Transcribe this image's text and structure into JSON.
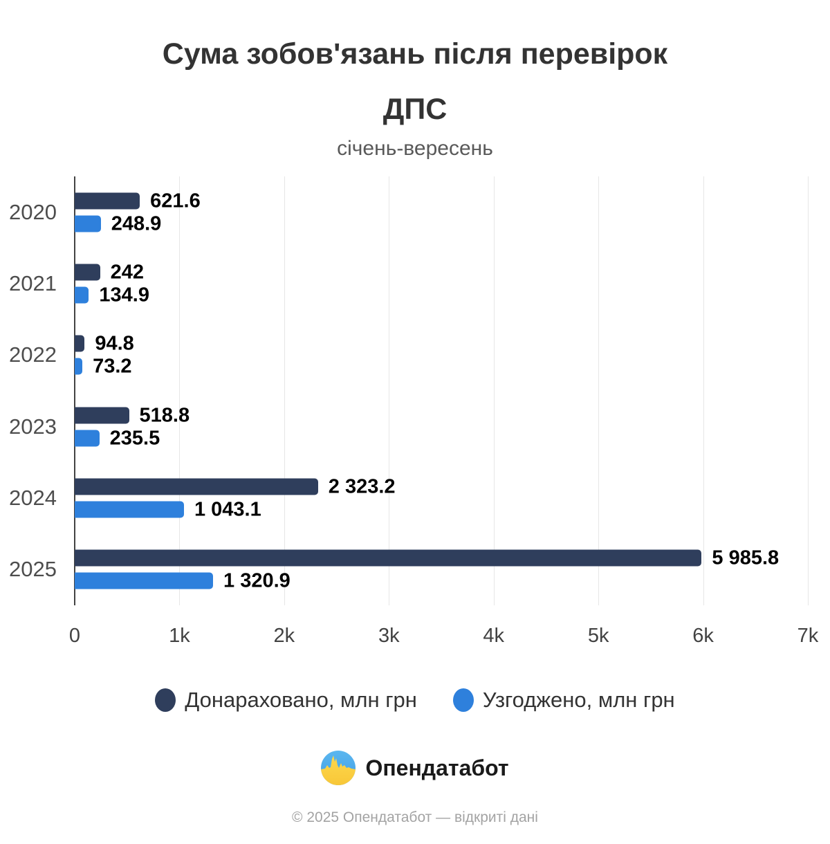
{
  "title": {
    "line1": "Сума зобов'язань після перевірок",
    "line2": "ДПС",
    "subtitle": "січень-вересень"
  },
  "chart_data": {
    "type": "bar",
    "orientation": "horizontal",
    "title": "Сума зобов'язань після перевірок ДПС",
    "subtitle": "січень-вересень",
    "categories": [
      "2020",
      "2021",
      "2022",
      "2023",
      "2024",
      "2025"
    ],
    "series": [
      {
        "name": "Донараховано, млн грн",
        "color": "#2f3e5c",
        "values": [
          621.6,
          242,
          94.8,
          518.8,
          2323.2,
          5985.8
        ],
        "labels": [
          "621.6",
          "242",
          "94.8",
          "518.8",
          "2 323.2",
          "5 985.8"
        ]
      },
      {
        "name": "Узгоджено, млн грн",
        "color": "#2e80dc",
        "values": [
          248.9,
          134.9,
          73.2,
          235.5,
          1043.1,
          1320.9
        ],
        "labels": [
          "248.9",
          "134.9",
          "73.2",
          "235.5",
          "1 043.1",
          "1 320.9"
        ]
      }
    ],
    "xlim": [
      0,
      7000
    ],
    "x_ticks": [
      "0",
      "1k",
      "2k",
      "3k",
      "4k",
      "5k",
      "6k",
      "7k"
    ],
    "grid": "vertical-gridlines",
    "gridline_color": "#e6e6e6",
    "axis_color": "#424242",
    "legend_position": "bottom"
  },
  "legend": {
    "items": [
      {
        "label": "Донараховано, млн грн",
        "color": "#2f3e5c"
      },
      {
        "label": "Узгоджено, млн грн",
        "color": "#2e80dc"
      }
    ]
  },
  "branding": {
    "logo_text": "Опендатабот",
    "logo_icon": "opendatabot-pulse-icon",
    "colors": {
      "flag_blue": "#4aa7e8",
      "flag_yellow": "#fbd343"
    }
  },
  "footer": {
    "copyright": "© 2025 Опендатабот — відкриті дані"
  }
}
